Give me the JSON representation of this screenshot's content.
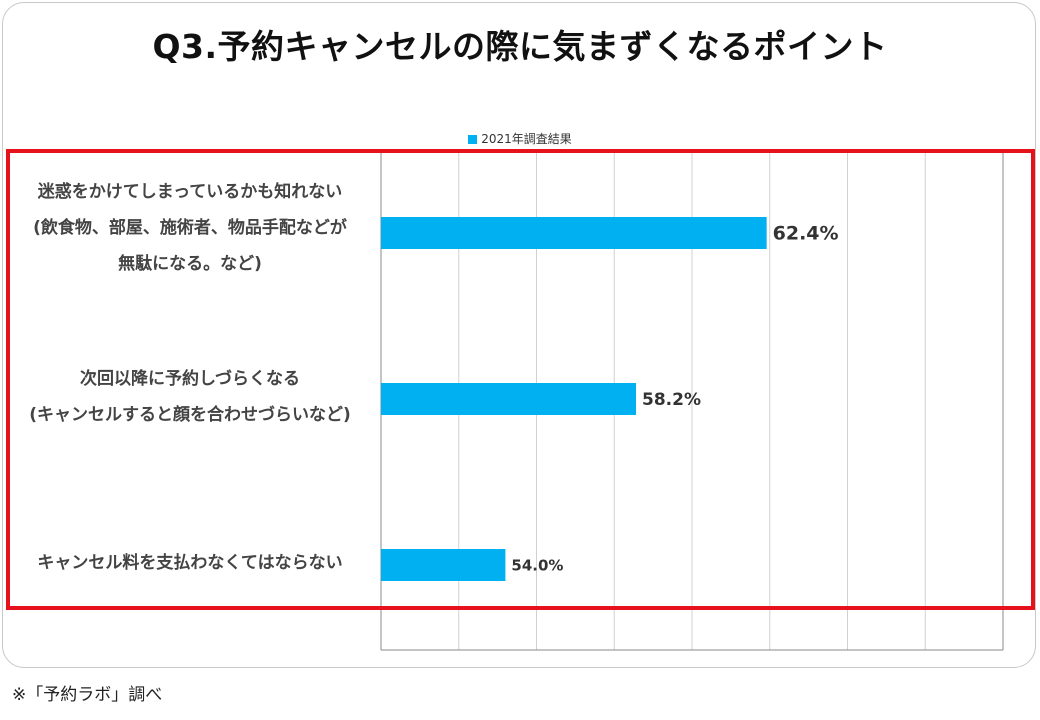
{
  "title": "Q3.予約キャンセルの際に気まずくなるポイント",
  "footnote": "※「予約ラボ」調べ",
  "colors": {
    "bar": "#00b0f0",
    "highlight": "#e5121b",
    "grid": "#d0d0d0",
    "axis": "#888888"
  },
  "chart_data": {
    "type": "bar",
    "orientation": "horizontal",
    "categories": [
      [
        "迷惑をかけてしまっているかも知れない",
        "(飲食物、部屋、施術者、物品手配などが",
        "無駄になる。など)"
      ],
      [
        "次回以降に予約しづらくなる",
        "(キャンセルすると顔を合わせづらいなど)"
      ],
      [
        "キャンセル料を支払わなくてはならない"
      ]
    ],
    "series": [
      {
        "name": "2021年調査結果",
        "values": [
          62.4,
          58.2,
          54.0
        ],
        "labels": [
          "62.4%",
          "58.2%",
          "54.0%"
        ]
      }
    ],
    "xlim": [
      50,
      70
    ],
    "grid": true,
    "legend_position": "top-center"
  }
}
